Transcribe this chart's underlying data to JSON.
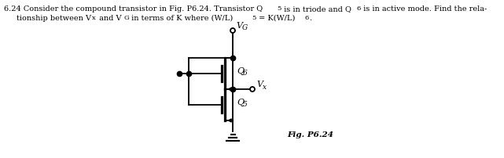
{
  "fig_label": "Fig. P6.24",
  "label_Q6": "Q",
  "label_Q6_sub": "6",
  "label_Q5": "Q",
  "label_Q5_sub": "5",
  "label_VG": "V",
  "label_VG_sub": "G",
  "label_Vx": "V",
  "label_Vx_sub": "x",
  "text_color": "#000000",
  "line_color": "#000000",
  "bg_color": "#ffffff",
  "figsize": [
    6.41,
    2.03
  ],
  "dpi": 100,
  "line1_main": "6.24 Consider the compound transistor in Fig. P6.24. Transistor Q",
  "line1_sub1": "5",
  "line1_mid": " is in triode and Q",
  "line1_sub2": "6",
  "line1_end": " is in active mode. Find the rela-",
  "line2_start": "tionship between V",
  "line2_sub1": "x",
  "line2_mid1": " and V",
  "line2_sub2": "G",
  "line2_mid2": " in terms of K where (W/L)",
  "line2_sub3": "5",
  "line2_mid3": " = K(W/L)",
  "line2_sub4": "6",
  "line2_end": "."
}
